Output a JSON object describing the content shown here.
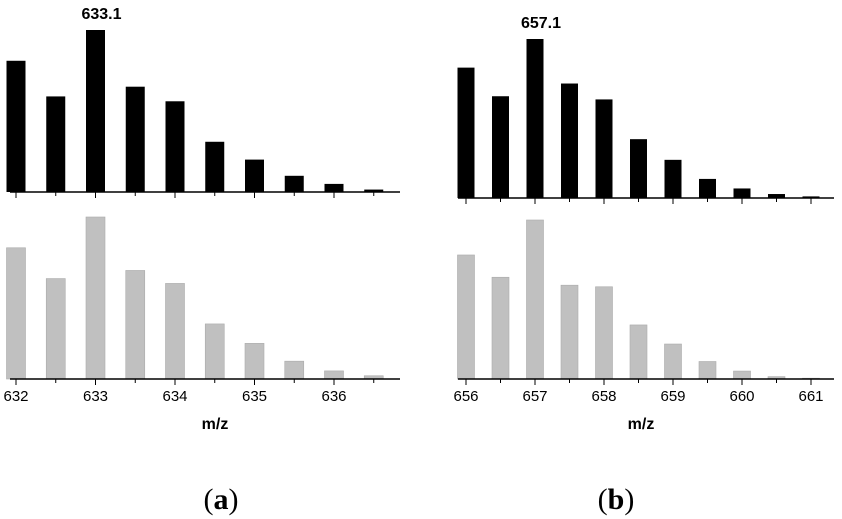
{
  "chart_data": [
    {
      "type": "bar",
      "panel_label": "a",
      "xlabel": "m/z",
      "x_ticks": [
        632,
        633,
        634,
        635,
        636
      ],
      "xlim": [
        632,
        636.8
      ],
      "peak_label": "633.1",
      "peak_x": 633.0,
      "colors": {
        "top": "#000000",
        "bottom": "#c0c0c0",
        "bottom_edge": "#aaaaaa"
      },
      "series": [
        {
          "x": [
            632.0,
            632.5,
            633.0,
            633.5,
            634.0,
            634.5,
            635.0,
            635.5,
            636.0,
            636.5
          ],
          "values": [
            81,
            59,
            100,
            65,
            56,
            31,
            20,
            10,
            5,
            1.5
          ]
        },
        {
          "x": [
            632.0,
            632.5,
            633.0,
            633.5,
            634.0,
            634.5,
            635.0,
            635.5,
            636.0,
            636.5
          ],
          "values": [
            81,
            62,
            100,
            67,
            59,
            34,
            22,
            11,
            5,
            2
          ]
        }
      ]
    },
    {
      "type": "bar",
      "panel_label": "b",
      "xlabel": "m/z",
      "x_ticks": [
        656,
        657,
        658,
        659,
        660,
        661
      ],
      "xlim": [
        656,
        661.5
      ],
      "peak_label": "657.1",
      "peak_x": 657.0,
      "colors": {
        "top": "#000000",
        "bottom": "#c0c0c0",
        "bottom_edge": "#aaaaaa"
      },
      "series": [
        {
          "x": [
            656.0,
            656.5,
            657.0,
            657.5,
            658.0,
            658.5,
            659.0,
            659.5,
            660.0,
            660.5,
            661.0
          ],
          "values": [
            82,
            64,
            100,
            72,
            62,
            37,
            24,
            12,
            6,
            2.5,
            1
          ]
        },
        {
          "x": [
            656.0,
            656.5,
            657.0,
            657.5,
            658.0,
            658.5,
            659.0,
            659.5,
            660.0,
            660.5,
            661.0
          ],
          "values": [
            78,
            64,
            100,
            59,
            58,
            34,
            22,
            11,
            5,
            1.5,
            0.5
          ]
        }
      ]
    }
  ]
}
